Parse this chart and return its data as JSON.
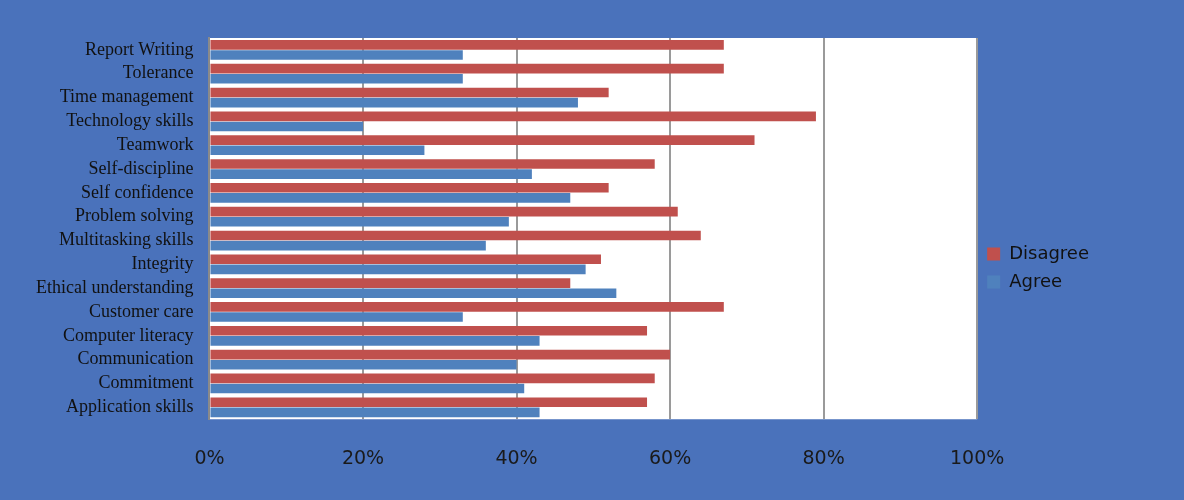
{
  "chart_data": {
    "type": "bar",
    "orientation": "horizontal",
    "categories": [
      "Report Writing",
      "Tolerance",
      "Time management",
      "Technology skills",
      "Teamwork",
      "Self-discipline",
      "Self confidence",
      "Problem solving",
      "Multitasking skills",
      "Integrity",
      "Ethical understanding",
      "Customer care",
      "Computer literacy",
      "Communication",
      "Commitment",
      "Application skills"
    ],
    "series": [
      {
        "name": "Disagree",
        "color": "#c0504d",
        "values": [
          67,
          67,
          52,
          79,
          71,
          58,
          52,
          61,
          64,
          51,
          47,
          67,
          57,
          60,
          58,
          57
        ]
      },
      {
        "name": "Agree",
        "color": "#4f81bd",
        "values": [
          33,
          33,
          48,
          20,
          28,
          42,
          47,
          39,
          36,
          49,
          53,
          33,
          43,
          40,
          41,
          43
        ]
      }
    ],
    "xlim": [
      0,
      100
    ],
    "xticks": [
      {
        "value": 0,
        "label": "0%"
      },
      {
        "value": 20,
        "label": "20%"
      },
      {
        "value": 40,
        "label": "40%"
      },
      {
        "value": 60,
        "label": "60%"
      },
      {
        "value": 80,
        "label": "80%"
      },
      {
        "value": 100,
        "label": "100%"
      }
    ],
    "grid": "x",
    "legend": "right"
  }
}
